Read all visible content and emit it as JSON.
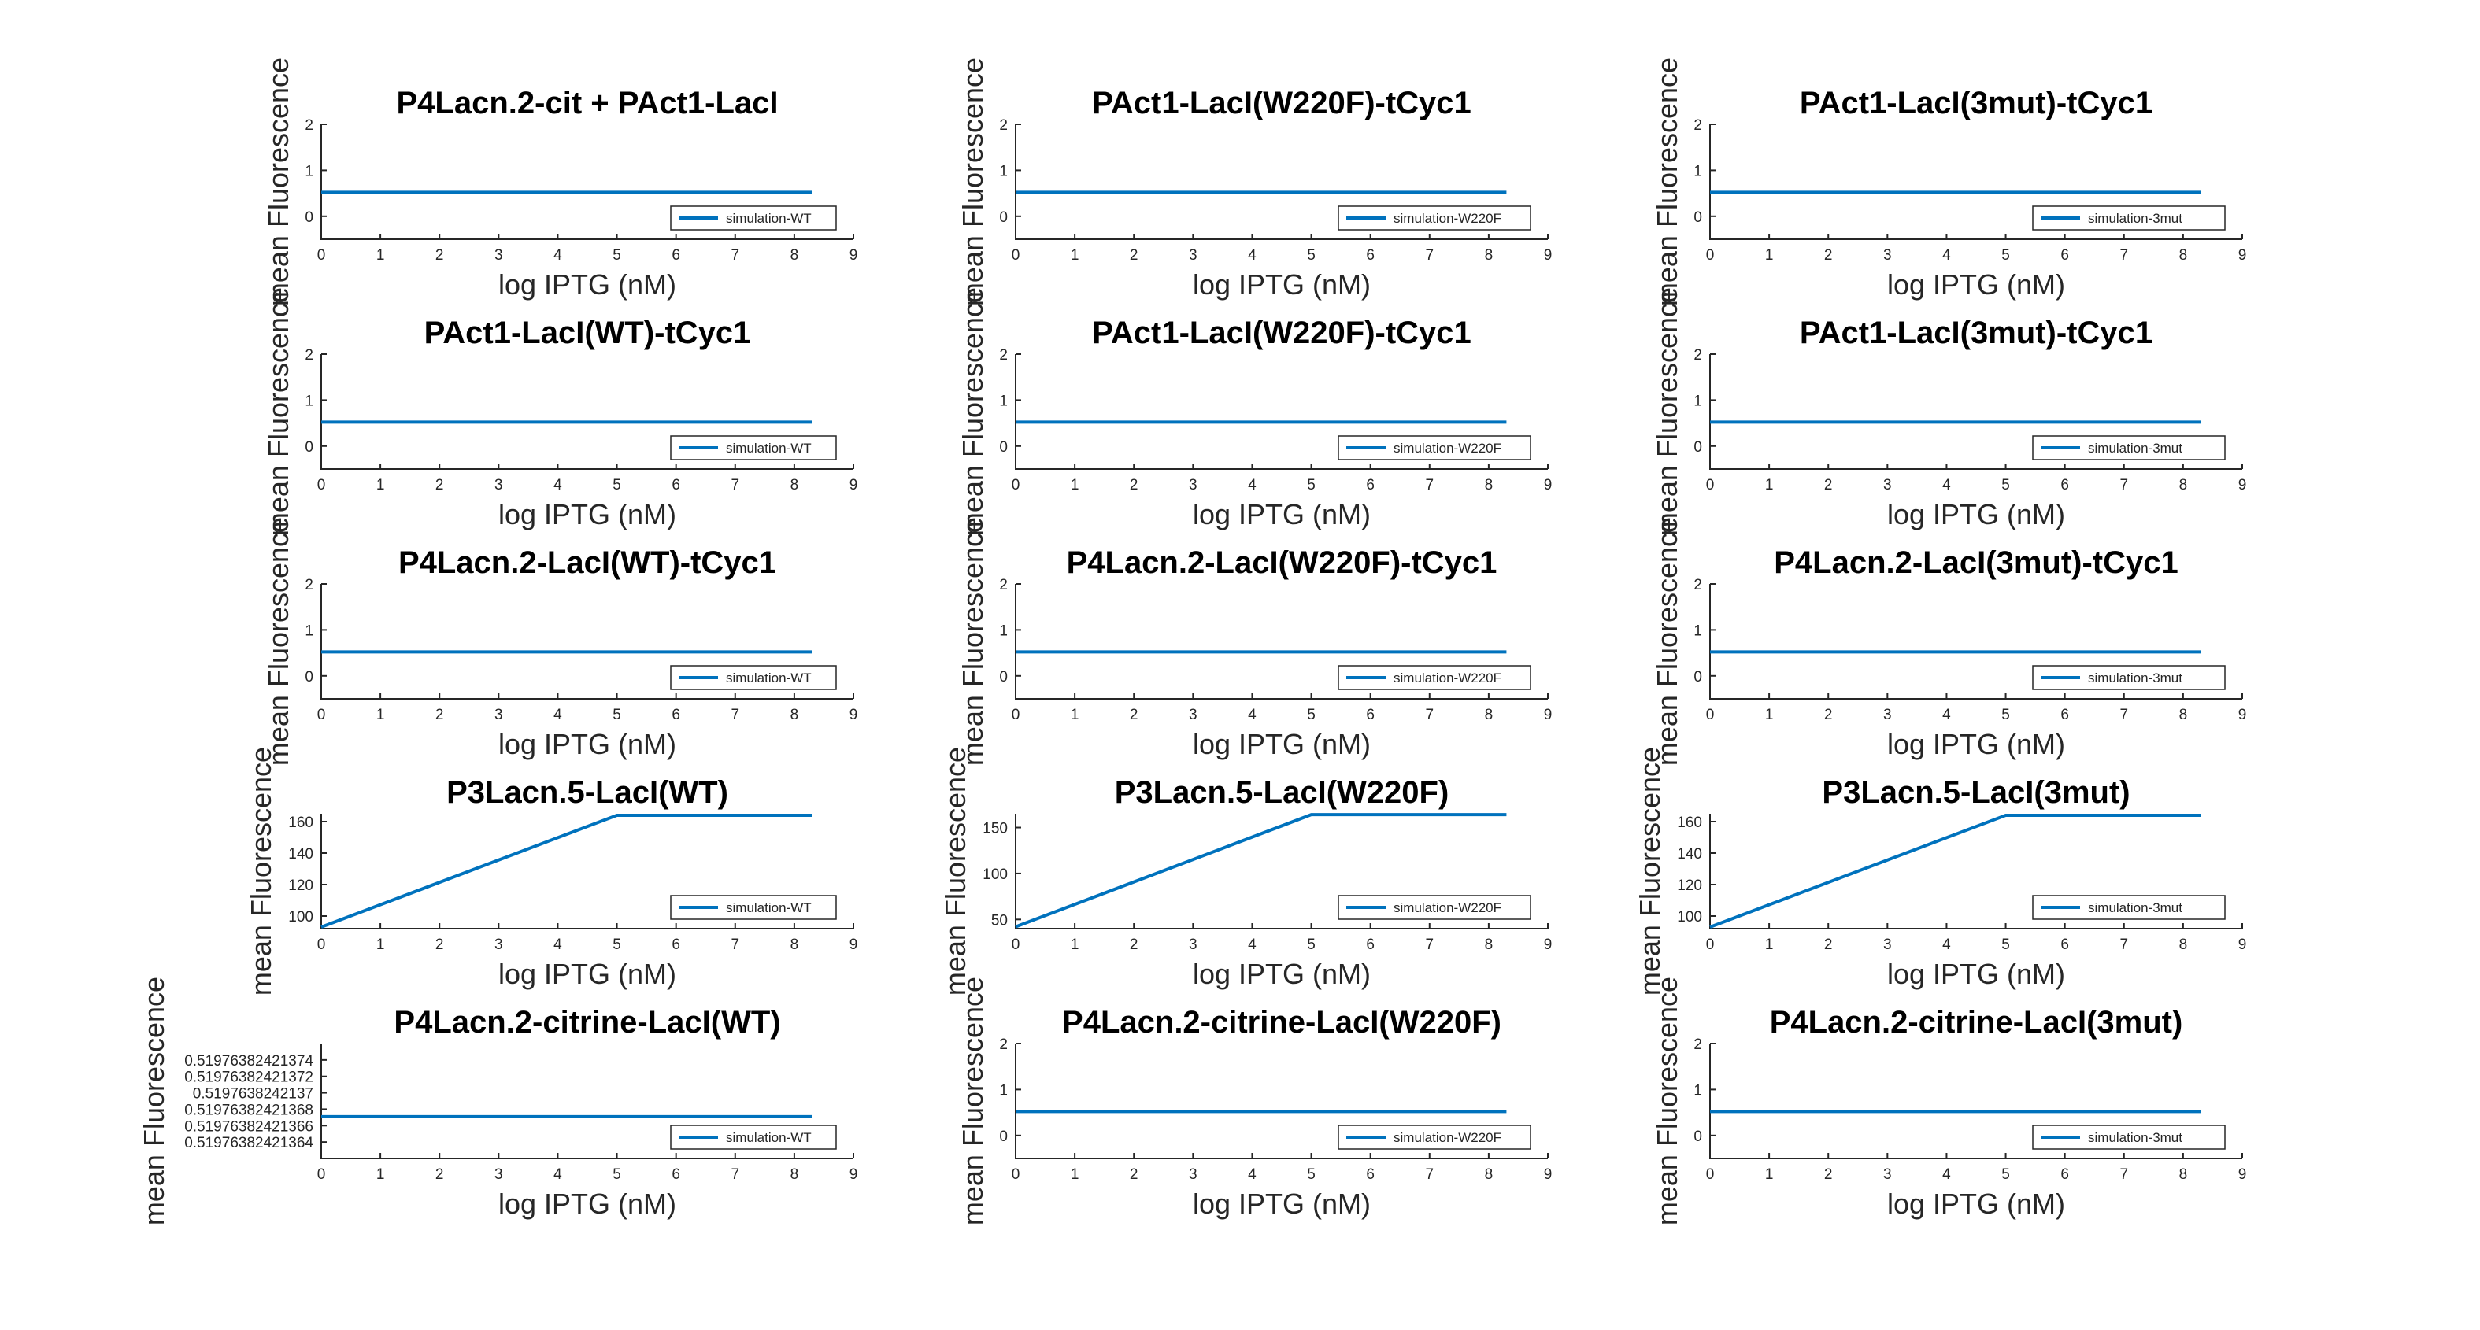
{
  "chart_data": [
    {
      "type": "line",
      "title": "P4Lacn.2-cit + PAct1-LacI",
      "xlabel": "log IPTG (nM)",
      "ylabel": "mean Fluorescence",
      "xlim": [
        0,
        9
      ],
      "ylim": [
        -0.5,
        2
      ],
      "xticks": [
        0,
        1,
        2,
        3,
        4,
        5,
        6,
        7,
        8,
        9
      ],
      "yticks": [
        0,
        1,
        2
      ],
      "ytick_labels": [
        "0",
        "1",
        "2"
      ],
      "legend_position": "bottom-right",
      "series": [
        {
          "name": "simulation-WT",
          "color": "#0072BD",
          "x": [
            0,
            8.3
          ],
          "y": [
            0.52,
            0.52
          ]
        }
      ]
    },
    {
      "type": "line",
      "title": "PAct1-LacI(W220F)-tCyc1",
      "xlabel": "log IPTG (nM)",
      "ylabel": "mean Fluorescence",
      "xlim": [
        0,
        9
      ],
      "ylim": [
        -0.5,
        2
      ],
      "xticks": [
        0,
        1,
        2,
        3,
        4,
        5,
        6,
        7,
        8,
        9
      ],
      "yticks": [
        0,
        1,
        2
      ],
      "ytick_labels": [
        "0",
        "1",
        "2"
      ],
      "legend_position": "bottom-right",
      "series": [
        {
          "name": "simulation-W220F",
          "color": "#0072BD",
          "x": [
            0,
            8.3
          ],
          "y": [
            0.52,
            0.52
          ]
        }
      ]
    },
    {
      "type": "line",
      "title": "PAct1-LacI(3mut)-tCyc1",
      "xlabel": "log IPTG (nM)",
      "ylabel": "mean Fluorescence",
      "xlim": [
        0,
        9
      ],
      "ylim": [
        -0.5,
        2
      ],
      "xticks": [
        0,
        1,
        2,
        3,
        4,
        5,
        6,
        7,
        8,
        9
      ],
      "yticks": [
        0,
        1,
        2
      ],
      "ytick_labels": [
        "0",
        "1",
        "2"
      ],
      "legend_position": "bottom-right",
      "series": [
        {
          "name": "simulation-3mut",
          "color": "#0072BD",
          "x": [
            0,
            8.3
          ],
          "y": [
            0.52,
            0.52
          ]
        }
      ]
    },
    {
      "type": "line",
      "title": "PAct1-LacI(WT)-tCyc1",
      "xlabel": "log IPTG (nM)",
      "ylabel": "mean Fluorescence",
      "xlim": [
        0,
        9
      ],
      "ylim": [
        -0.5,
        2
      ],
      "xticks": [
        0,
        1,
        2,
        3,
        4,
        5,
        6,
        7,
        8,
        9
      ],
      "yticks": [
        0,
        1,
        2
      ],
      "ytick_labels": [
        "0",
        "1",
        "2"
      ],
      "legend_position": "bottom-right",
      "series": [
        {
          "name": "simulation-WT",
          "color": "#0072BD",
          "x": [
            0,
            8.3
          ],
          "y": [
            0.52,
            0.52
          ]
        }
      ]
    },
    {
      "type": "line",
      "title": "PAct1-LacI(W220F)-tCyc1",
      "xlabel": "log IPTG (nM)",
      "ylabel": "mean Fluorescence",
      "xlim": [
        0,
        9
      ],
      "ylim": [
        -0.5,
        2
      ],
      "xticks": [
        0,
        1,
        2,
        3,
        4,
        5,
        6,
        7,
        8,
        9
      ],
      "yticks": [
        0,
        1,
        2
      ],
      "ytick_labels": [
        "0",
        "1",
        "2"
      ],
      "legend_position": "bottom-right",
      "series": [
        {
          "name": "simulation-W220F",
          "color": "#0072BD",
          "x": [
            0,
            8.3
          ],
          "y": [
            0.52,
            0.52
          ]
        }
      ]
    },
    {
      "type": "line",
      "title": "PAct1-LacI(3mut)-tCyc1",
      "xlabel": "log IPTG (nM)",
      "ylabel": "mean Fluorescence",
      "xlim": [
        0,
        9
      ],
      "ylim": [
        -0.5,
        2
      ],
      "xticks": [
        0,
        1,
        2,
        3,
        4,
        5,
        6,
        7,
        8,
        9
      ],
      "yticks": [
        0,
        1,
        2
      ],
      "ytick_labels": [
        "0",
        "1",
        "2"
      ],
      "legend_position": "bottom-right",
      "series": [
        {
          "name": "simulation-3mut",
          "color": "#0072BD",
          "x": [
            0,
            8.3
          ],
          "y": [
            0.52,
            0.52
          ]
        }
      ]
    },
    {
      "type": "line",
      "title": "P4Lacn.2-LacI(WT)-tCyc1",
      "xlabel": "log IPTG (nM)",
      "ylabel": "mean Fluorescence",
      "xlim": [
        0,
        9
      ],
      "ylim": [
        -0.5,
        2
      ],
      "xticks": [
        0,
        1,
        2,
        3,
        4,
        5,
        6,
        7,
        8,
        9
      ],
      "yticks": [
        0,
        1,
        2
      ],
      "ytick_labels": [
        "0",
        "1",
        "2"
      ],
      "legend_position": "bottom-right",
      "series": [
        {
          "name": "simulation-WT",
          "color": "#0072BD",
          "x": [
            0,
            8.3
          ],
          "y": [
            0.52,
            0.52
          ]
        }
      ]
    },
    {
      "type": "line",
      "title": "P4Lacn.2-LacI(W220F)-tCyc1",
      "xlabel": "log IPTG (nM)",
      "ylabel": "mean Fluorescence",
      "xlim": [
        0,
        9
      ],
      "ylim": [
        -0.5,
        2
      ],
      "xticks": [
        0,
        1,
        2,
        3,
        4,
        5,
        6,
        7,
        8,
        9
      ],
      "yticks": [
        0,
        1,
        2
      ],
      "ytick_labels": [
        "0",
        "1",
        "2"
      ],
      "legend_position": "bottom-right",
      "series": [
        {
          "name": "simulation-W220F",
          "color": "#0072BD",
          "x": [
            0,
            8.3
          ],
          "y": [
            0.52,
            0.52
          ]
        }
      ]
    },
    {
      "type": "line",
      "title": "P4Lacn.2-LacI(3mut)-tCyc1",
      "xlabel": "log IPTG (nM)",
      "ylabel": "mean Fluorescence",
      "xlim": [
        0,
        9
      ],
      "ylim": [
        -0.5,
        2
      ],
      "xticks": [
        0,
        1,
        2,
        3,
        4,
        5,
        6,
        7,
        8,
        9
      ],
      "yticks": [
        0,
        1,
        2
      ],
      "ytick_labels": [
        "0",
        "1",
        "2"
      ],
      "legend_position": "bottom-right",
      "series": [
        {
          "name": "simulation-3mut",
          "color": "#0072BD",
          "x": [
            0,
            8.3
          ],
          "y": [
            0.52,
            0.52
          ]
        }
      ]
    },
    {
      "type": "line",
      "title": "P3Lacn.5-LacI(WT)",
      "xlabel": "log IPTG (nM)",
      "ylabel": "mean Fluorescence",
      "xlim": [
        0,
        9
      ],
      "ylim": [
        92,
        165
      ],
      "xticks": [
        0,
        1,
        2,
        3,
        4,
        5,
        6,
        7,
        8,
        9
      ],
      "yticks": [
        100,
        120,
        140,
        160
      ],
      "ytick_labels": [
        "100",
        "120",
        "140",
        "160"
      ],
      "legend_position": "bottom-right",
      "series": [
        {
          "name": "simulation-WT",
          "color": "#0072BD",
          "x": [
            0,
            5,
            8.3
          ],
          "y": [
            93,
            164,
            164
          ]
        }
      ]
    },
    {
      "type": "line",
      "title": "P3Lacn.5-LacI(W220F)",
      "xlabel": "log IPTG (nM)",
      "ylabel": "mean Fluorescence",
      "xlim": [
        0,
        9
      ],
      "ylim": [
        40,
        165
      ],
      "xticks": [
        0,
        1,
        2,
        3,
        4,
        5,
        6,
        7,
        8,
        9
      ],
      "yticks": [
        50,
        100,
        150
      ],
      "ytick_labels": [
        "50",
        "100",
        "150"
      ],
      "legend_position": "bottom-right",
      "series": [
        {
          "name": "simulation-W220F",
          "color": "#0072BD",
          "x": [
            0,
            5,
            8.3
          ],
          "y": [
            42,
            164,
            164
          ]
        }
      ]
    },
    {
      "type": "line",
      "title": "P3Lacn.5-LacI(3mut)",
      "xlabel": "log IPTG (nM)",
      "ylabel": "mean Fluorescence",
      "xlim": [
        0,
        9
      ],
      "ylim": [
        92,
        165
      ],
      "xticks": [
        0,
        1,
        2,
        3,
        4,
        5,
        6,
        7,
        8,
        9
      ],
      "yticks": [
        100,
        120,
        140,
        160
      ],
      "ytick_labels": [
        "100",
        "120",
        "140",
        "160"
      ],
      "legend_position": "bottom-right",
      "series": [
        {
          "name": "simulation-3mut",
          "color": "#0072BD",
          "x": [
            0,
            5,
            8.3
          ],
          "y": [
            93,
            164,
            164
          ]
        }
      ]
    },
    {
      "type": "line",
      "title": "P4Lacn.2-citrine-LacI(WT)",
      "xlabel": "log IPTG (nM)",
      "ylabel": "mean Fluorescence",
      "xlim": [
        0,
        9
      ],
      "ylim": [
        0,
        7
      ],
      "xticks": [
        0,
        1,
        2,
        3,
        4,
        5,
        6,
        7,
        8,
        9
      ],
      "yticks": [
        1,
        2,
        3,
        4,
        5,
        6
      ],
      "ytick_labels": [
        "0.51976382421364",
        "0.51976382421366",
        "0.51976382421368",
        "0.5197638242137",
        "0.51976382421372",
        "0.51976382421374"
      ],
      "legend_position": "bottom-right",
      "series": [
        {
          "name": "simulation-WT",
          "color": "#0072BD",
          "x": [
            0,
            8.3
          ],
          "y": [
            2.55,
            2.55
          ]
        }
      ]
    },
    {
      "type": "line",
      "title": "P4Lacn.2-citrine-LacI(W220F)",
      "xlabel": "log IPTG (nM)",
      "ylabel": "mean Fluorescence",
      "xlim": [
        0,
        9
      ],
      "ylim": [
        -0.5,
        2
      ],
      "xticks": [
        0,
        1,
        2,
        3,
        4,
        5,
        6,
        7,
        8,
        9
      ],
      "yticks": [
        0,
        1,
        2
      ],
      "ytick_labels": [
        "0",
        "1",
        "2"
      ],
      "legend_position": "bottom-right",
      "series": [
        {
          "name": "simulation-W220F",
          "color": "#0072BD",
          "x": [
            0,
            8.3
          ],
          "y": [
            0.52,
            0.52
          ]
        }
      ]
    },
    {
      "type": "line",
      "title": "P4Lacn.2-citrine-LacI(3mut)",
      "xlabel": "log IPTG (nM)",
      "ylabel": "mean Fluorescence",
      "xlim": [
        0,
        9
      ],
      "ylim": [
        -0.5,
        2
      ],
      "xticks": [
        0,
        1,
        2,
        3,
        4,
        5,
        6,
        7,
        8,
        9
      ],
      "yticks": [
        0,
        1,
        2
      ],
      "ytick_labels": [
        "0",
        "1",
        "2"
      ],
      "legend_position": "bottom-right",
      "series": [
        {
          "name": "simulation-3mut",
          "color": "#0072BD",
          "x": [
            0,
            8.3
          ],
          "y": [
            0.52,
            0.52
          ]
        }
      ]
    }
  ]
}
